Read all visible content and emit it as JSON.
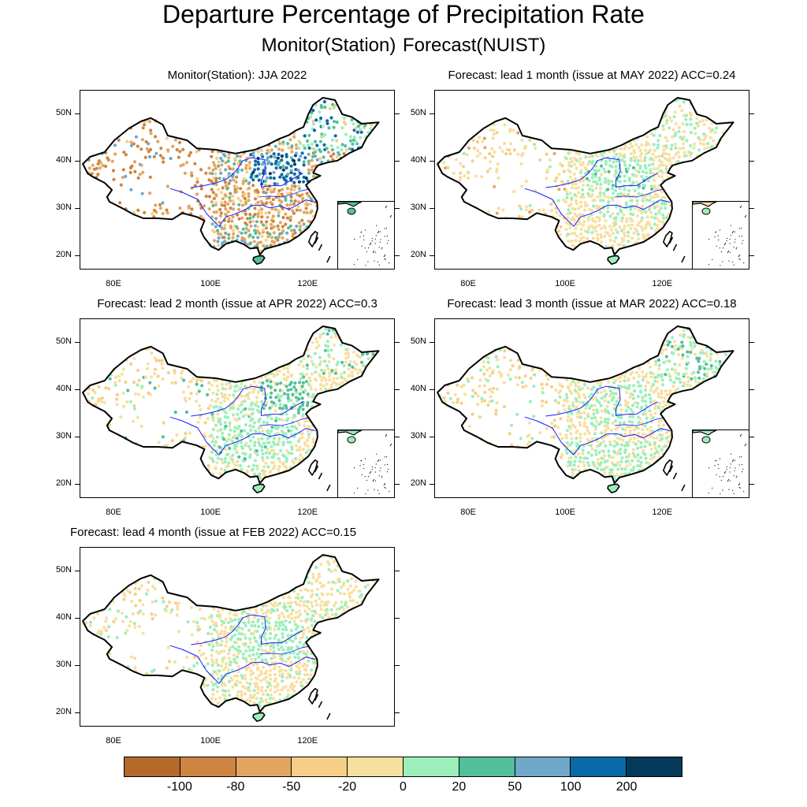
{
  "title": "Departure Percentage of Precipitation Rate",
  "subtitle": "Monitor(Station)   Forecast(NUIST)",
  "lat_labels": [
    "50N",
    "40N",
    "30N",
    "20N"
  ],
  "lon_labels": [
    "80E",
    "100E",
    "120E"
  ],
  "panels": [
    {
      "title": "Monitor(Station): JJA 2022",
      "scheme": "monitor",
      "inset": true
    },
    {
      "title": "Forecast: lead 1 month (issue at MAY 2022) ACC=0.24",
      "scheme": "lead1",
      "inset": true
    },
    {
      "title": "Forecast: lead 2 month (issue at APR 2022) ACC=0.3",
      "scheme": "lead2",
      "inset": true
    },
    {
      "title": "Forecast: lead 3 month (issue at MAR 2022) ACC=0.18",
      "scheme": "lead3",
      "inset": true
    },
    {
      "title": "Forecast: lead 4 month (issue at FEB 2022) ACC=0.15",
      "scheme": "lead4",
      "inset": false
    }
  ],
  "colorbar": {
    "colors": [
      "#b5692b",
      "#cd8541",
      "#e2a660",
      "#f5cf87",
      "#f6e0a0",
      "#9cefba",
      "#52c09b",
      "#6fa8c9",
      "#0a6aa7",
      "#04395a"
    ],
    "labels": [
      "-100",
      "-80",
      "-50",
      "-20",
      "0",
      "20",
      "50",
      "100",
      "200"
    ]
  },
  "colors": {
    "coast": "#000000",
    "rivers": "#1a1aff"
  }
}
